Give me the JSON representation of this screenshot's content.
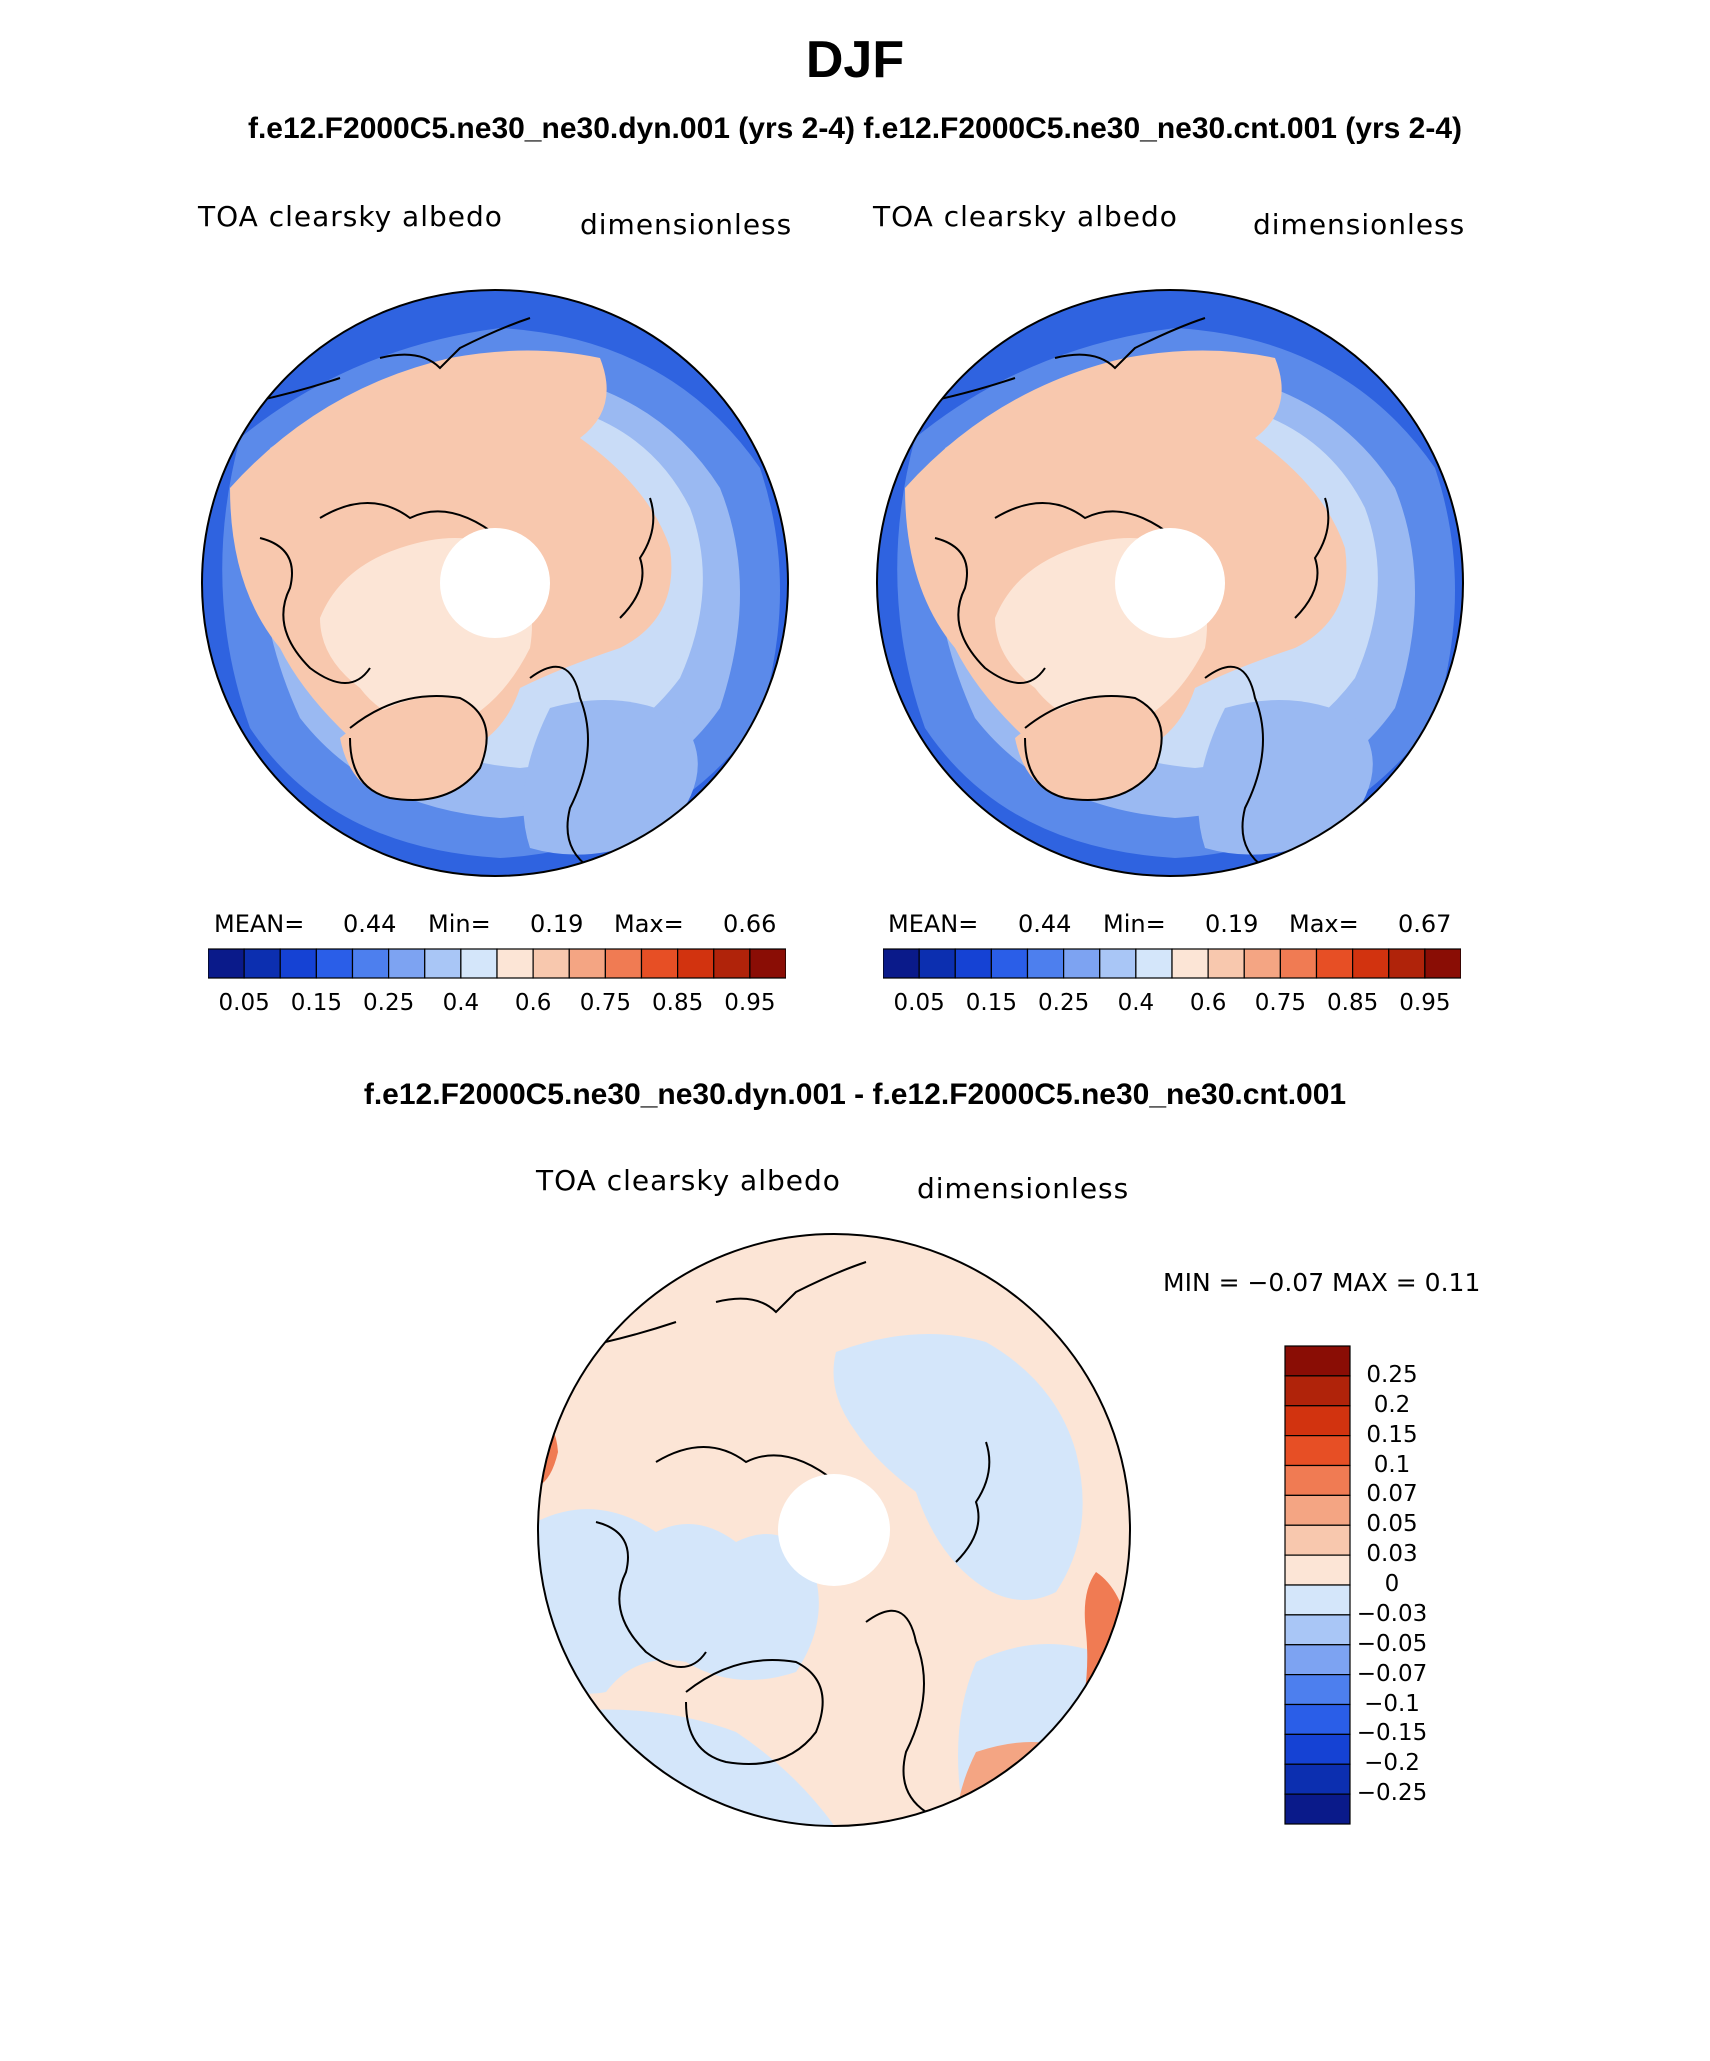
{
  "figure": {
    "title": "DJF",
    "case_header": "f.e12.F2000C5.ne30_ne30.dyn.001 (yrs 2-4)  f.e12.F2000C5.ne30_ne30.cnt.001 (yrs 2-4)",
    "diff_header": "f.e12.F2000C5.ne30_ne30.dyn.001 - f.e12.F2000C5.ne30_ne30.cnt.001"
  },
  "panels": [
    {
      "variable": "TOA clearsky albedo",
      "units": "dimensionless",
      "mean_label": "MEAN=",
      "mean": "0.44",
      "min_label": "Min=",
      "min": "0.19",
      "max_label": "Max=",
      "max": "0.66"
    },
    {
      "variable": "TOA clearsky albedo",
      "units": "dimensionless",
      "mean_label": "MEAN=",
      "mean": "0.44",
      "min_label": "Min=",
      "min": "0.19",
      "max_label": "Max=",
      "max": "0.67"
    },
    {
      "variable": "TOA clearsky albedo",
      "units": "dimensionless",
      "minmax_text": "MIN =   −0.07 MAX =     0.11"
    }
  ],
  "colorbar_abs": {
    "colors": [
      "#0a1a8a",
      "#0c2fb0",
      "#1542d4",
      "#2a5ee8",
      "#4d7fee",
      "#7da3f2",
      "#a9c6f6",
      "#d4e6fa",
      "#fce5d6",
      "#f8c8ae",
      "#f4a583",
      "#f07b53",
      "#e74f25",
      "#d2330f",
      "#b0230a",
      "#8a0d05"
    ],
    "tick_labels": [
      "0.05",
      "0.15",
      "0.25",
      "0.4",
      "0.6",
      "0.75",
      "0.85",
      "0.95"
    ]
  },
  "colorbar_diff": {
    "colors": [
      "#0a1a8a",
      "#0c2fb0",
      "#1542d4",
      "#2a5ee8",
      "#4d7fee",
      "#7da3f2",
      "#a9c6f6",
      "#d4e6fa",
      "#fce5d6",
      "#f8c8ae",
      "#f4a583",
      "#f07b53",
      "#e74f25",
      "#d2330f",
      "#b0230a",
      "#8a0d05"
    ],
    "tick_labels": [
      "0.25",
      "0.2",
      "0.15",
      "0.1",
      "0.07",
      "0.05",
      "0.03",
      "0",
      "−0.03",
      "−0.05",
      "−0.07",
      "−0.1",
      "−0.15",
      "−0.2",
      "−0.25"
    ]
  },
  "map_colors": {
    "deep_blue": "#2f63e0",
    "mid_blue": "#5b8aea",
    "light_blue": "#9ab9f2",
    "pale_blue": "#c9dcf7",
    "pale_peach": "#fce5d6",
    "peach": "#f8c8ae",
    "salmon": "#f4a583",
    "orange": "#f07b53",
    "diff_pale_blue": "#d4e6fa",
    "diff_peach": "#fce5d6"
  }
}
